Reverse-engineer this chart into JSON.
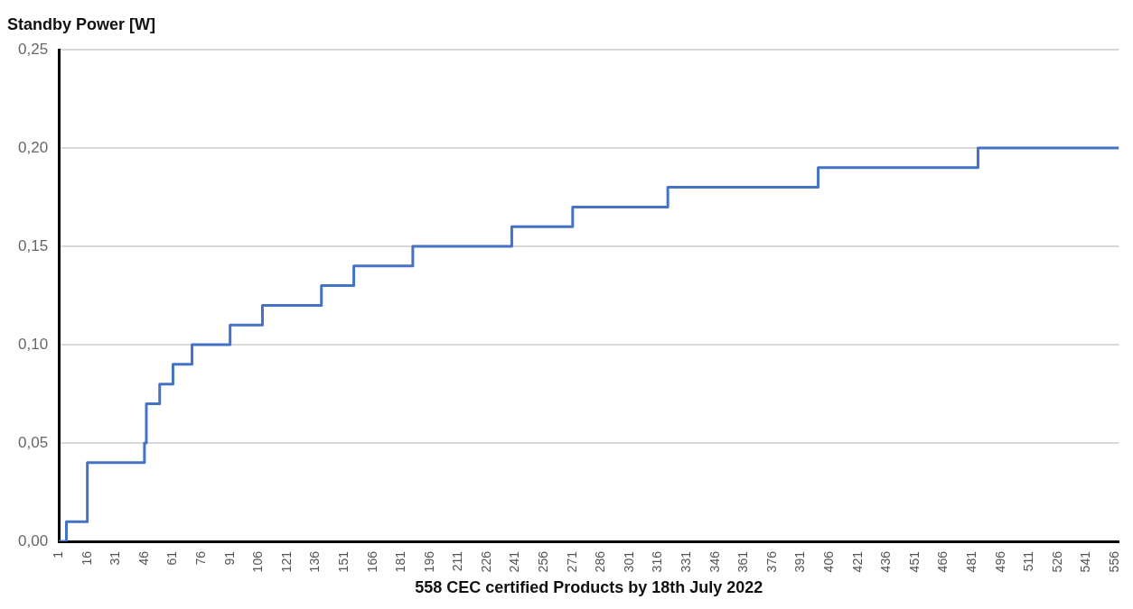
{
  "chart_data": {
    "type": "step",
    "ylabel": "Standby Power [W]",
    "xlabel": "558 CEC certified Products by 18th July 2022",
    "x": [
      1,
      5,
      16,
      46,
      47,
      54,
      61,
      71,
      91,
      108,
      139,
      156,
      187,
      239,
      271,
      321,
      400,
      484,
      558
    ],
    "values": [
      0,
      0.01,
      0.04,
      0.05,
      0.07,
      0.08,
      0.09,
      0.1,
      0.11,
      0.12,
      0.13,
      0.14,
      0.15,
      0.16,
      0.17,
      0.18,
      0.19,
      0.2,
      0.2
    ],
    "color": "#4472c4",
    "xlim": [
      1,
      558
    ],
    "xticks": [
      1,
      16,
      31,
      46,
      61,
      76,
      91,
      106,
      121,
      136,
      151,
      166,
      181,
      196,
      211,
      226,
      241,
      256,
      271,
      286,
      301,
      316,
      331,
      346,
      361,
      376,
      391,
      406,
      421,
      436,
      451,
      466,
      481,
      496,
      511,
      526,
      541,
      556
    ],
    "ylim": [
      0,
      0.25
    ],
    "yticks": [
      {
        "value": 0,
        "label": "0,00"
      },
      {
        "value": 0.05,
        "label": "0,05"
      },
      {
        "value": 0.1,
        "label": "0,10"
      },
      {
        "value": 0.15,
        "label": "0,15"
      },
      {
        "value": 0.2,
        "label": "0,20"
      },
      {
        "value": 0.25,
        "label": "0,25"
      }
    ],
    "grid": "y",
    "legend": false,
    "marker": "none",
    "line_style": "solid"
  }
}
